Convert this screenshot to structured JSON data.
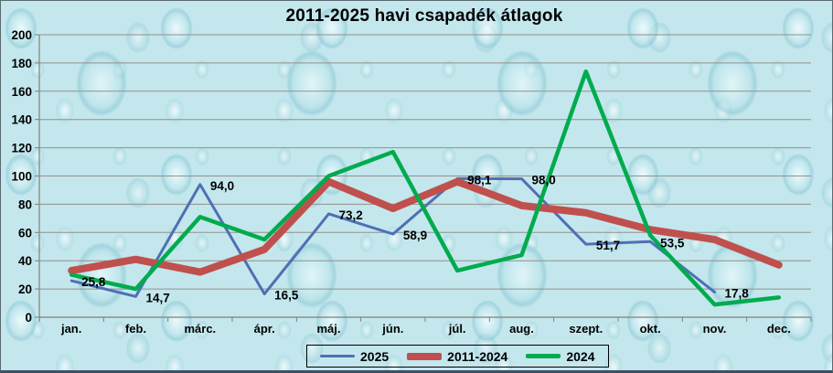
{
  "chart_data": {
    "type": "line",
    "title": "2011-2025 havi csapadék átlagok",
    "categories": [
      "jan.",
      "feb.",
      "márc.",
      "ápr.",
      "máj.",
      "jún.",
      "júl.",
      "aug.",
      "szept.",
      "okt.",
      "nov.",
      "dec."
    ],
    "series": [
      {
        "name": "2025",
        "color": "#4f6fb5",
        "line_width": 3,
        "values": [
          25.8,
          14.7,
          94.0,
          16.5,
          73.2,
          58.9,
          98.1,
          98.0,
          51.7,
          53.5,
          17.8,
          null
        ],
        "point_labels": [
          "25,8",
          "14,7",
          "94,0",
          "16,5",
          "73,2",
          "58,9",
          "98,1",
          "98,0",
          "51,7",
          "53,5",
          "17,8",
          ""
        ]
      },
      {
        "name": "2011-2024",
        "color": "#c0504d",
        "line_width": 8,
        "values": [
          33,
          41,
          32,
          48,
          96,
          77,
          96,
          79,
          74,
          62,
          55,
          37
        ],
        "point_labels": []
      },
      {
        "name": "2024",
        "color": "#00ab4e",
        "line_width": 4.5,
        "values": [
          30,
          20,
          71,
          55,
          100,
          117,
          33,
          44,
          174,
          58,
          9,
          14
        ],
        "point_labels": []
      }
    ],
    "ylim": [
      0,
      200
    ],
    "ytick_step": 20,
    "y_ticks": [
      "0",
      "20",
      "40",
      "60",
      "80",
      "100",
      "120",
      "140",
      "160",
      "180",
      "200"
    ],
    "grid": true,
    "legend_position": "bottom",
    "decimal_separator": ","
  },
  "legend": {
    "items": [
      {
        "label": "2025"
      },
      {
        "label": "2011-2024"
      },
      {
        "label": "2024"
      }
    ]
  },
  "colors": {
    "grid_line": "#94908a",
    "axis_line": "#82807a",
    "text": "#000000",
    "background_base": "#c3e7ed"
  }
}
